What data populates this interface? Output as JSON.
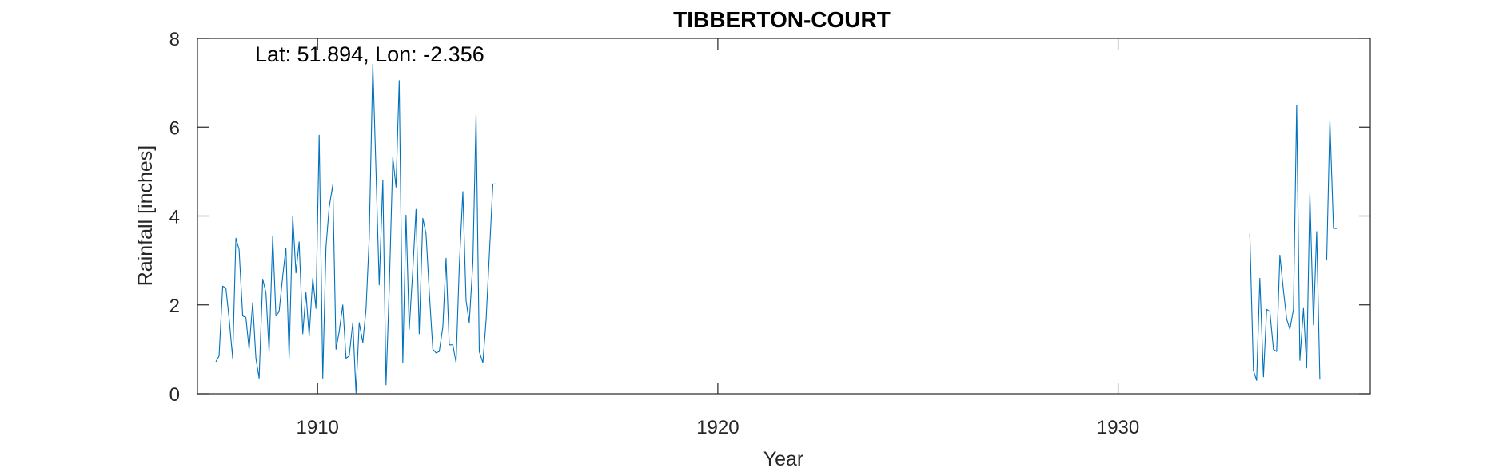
{
  "chart_data": {
    "type": "line",
    "title": "TIBBERTON-COURT",
    "xlabel": "Year",
    "ylabel": "Rainfall [inches]",
    "xlim": [
      1907,
      1936.3
    ],
    "ylim": [
      0,
      8
    ],
    "xticks": [
      1910,
      1920,
      1930
    ],
    "yticks": [
      0,
      2,
      4,
      6,
      8
    ],
    "annotation": "Lat: 51.894, Lon: -2.356",
    "grid": false,
    "color": "#0072BD",
    "series": [
      {
        "segments": [
          {
            "x": [
              1907.46,
              1907.54,
              1907.63,
              1907.71,
              1907.79,
              1907.88,
              1907.96,
              1908.04,
              1908.13,
              1908.21,
              1908.29,
              1908.38,
              1908.46,
              1908.54,
              1908.63,
              1908.71,
              1908.79,
              1908.88,
              1908.96,
              1909.04,
              1909.13,
              1909.21,
              1909.29,
              1909.38,
              1909.46,
              1909.54,
              1909.63,
              1909.71,
              1909.79,
              1909.88,
              1909.96,
              1910.04,
              1910.13,
              1910.21,
              1910.29,
              1910.38,
              1910.46,
              1910.54,
              1910.63,
              1910.71,
              1910.79,
              1910.88,
              1910.96,
              1911.04,
              1911.13,
              1911.21,
              1911.29,
              1911.38,
              1911.46,
              1911.54,
              1911.63,
              1911.71,
              1911.79,
              1911.88,
              1911.96,
              1912.04,
              1912.13,
              1912.21,
              1912.29,
              1912.38,
              1912.46,
              1912.54,
              1912.63,
              1912.71,
              1912.79,
              1912.88,
              1912.96,
              1913.04,
              1913.13,
              1913.21,
              1913.29,
              1913.38,
              1913.46,
              1913.54,
              1913.63,
              1913.71,
              1913.79,
              1913.88,
              1913.96,
              1914.04,
              1914.13,
              1914.21,
              1914.29,
              1914.38,
              1914.46
            ],
            "y": [
              0.72,
              0.85,
              2.42,
              2.38,
              1.7,
              0.8,
              3.5,
              3.25,
              1.75,
              1.72,
              1.0,
              2.05,
              0.8,
              0.35,
              2.58,
              2.28,
              0.95,
              3.55,
              1.75,
              1.85,
              2.65,
              3.28,
              0.8,
              4.0,
              2.72,
              3.42,
              1.35,
              2.28,
              1.3,
              2.6,
              1.92,
              5.82,
              0.35,
              3.3,
              4.2,
              4.7,
              1.0,
              1.4,
              2.0,
              0.8,
              0.85,
              1.6,
              0.02,
              1.6,
              1.15,
              1.9,
              3.5,
              7.42,
              5.0,
              2.45,
              4.8,
              0.2,
              2.35,
              5.32,
              4.65,
              7.05,
              0.7,
              4.02,
              1.45,
              2.8,
              4.15,
              1.35,
              3.95,
              3.6,
              2.3,
              1.0,
              0.92,
              0.95,
              1.5,
              3.05,
              1.1,
              1.1,
              0.7,
              2.85,
              4.55,
              2.1,
              1.6,
              2.95,
              6.28,
              0.95,
              0.7,
              1.65,
              3.1,
              4.72,
              4.72
            ]
          },
          {
            "x": [
              1933.29,
              1933.38,
              1933.46,
              1933.54,
              1933.63,
              1933.71,
              1933.79,
              1933.88,
              1933.96,
              1934.04,
              1934.13,
              1934.21,
              1934.29,
              1934.38,
              1934.46,
              1934.54,
              1934.63,
              1934.71,
              1934.79,
              1934.88,
              1934.96,
              1935.04,
              1935.13,
              1935.21,
              1935.29,
              1935.38,
              1935.46
            ],
            "y": [
              3.6,
              0.52,
              0.3,
              2.6,
              0.38,
              1.9,
              1.85,
              1.0,
              0.95,
              3.12,
              2.32,
              1.68,
              1.45,
              1.9,
              6.5,
              0.75,
              1.92,
              0.58,
              4.5,
              1.55,
              3.65,
              0.32,
              null,
              3.0,
              6.15,
              3.72,
              3.72
            ]
          }
        ]
      }
    ]
  }
}
